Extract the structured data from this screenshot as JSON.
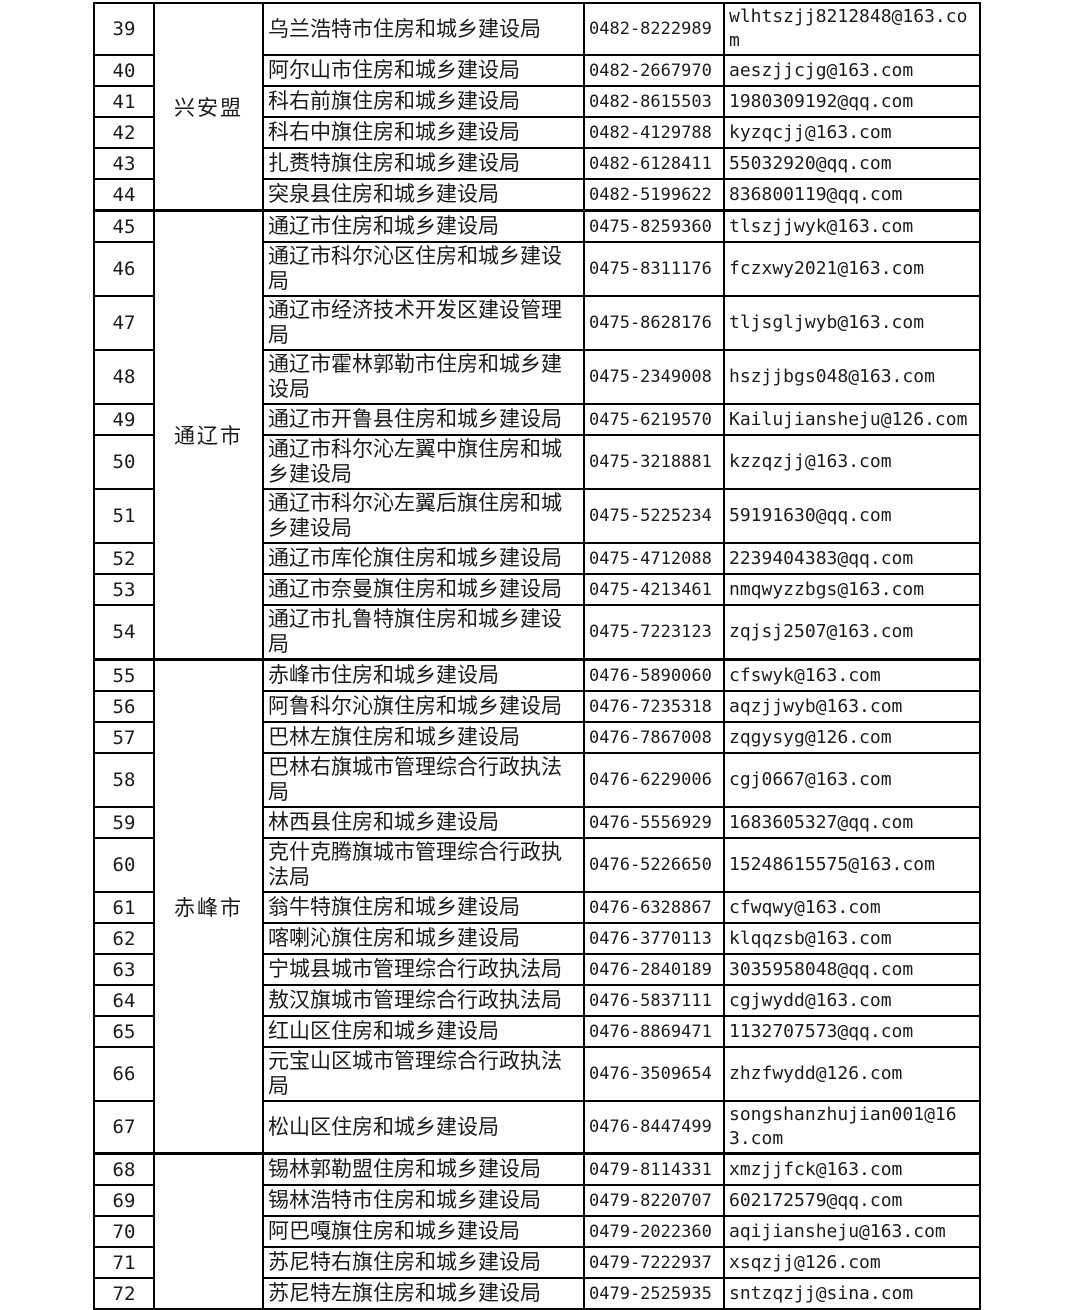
{
  "colors": {
    "background": "#ffffff",
    "border": "#000000",
    "text": "#1b1b1b"
  },
  "table": {
    "groups": [
      {
        "region": "兴安盟",
        "rows": [
          {
            "no": "39",
            "dept": "乌兰浩特市住房和城乡建设局",
            "phone": "0482-8222989",
            "email": "wlhtszjj8212848@163.com"
          },
          {
            "no": "40",
            "dept": "阿尔山市住房和城乡建设局",
            "phone": "0482-2667970",
            "email": "aeszjjcjg@163.com"
          },
          {
            "no": "41",
            "dept": "科右前旗住房和城乡建设局",
            "phone": "0482-8615503",
            "email": "1980309192@qq.com"
          },
          {
            "no": "42",
            "dept": "科右中旗住房和城乡建设局",
            "phone": "0482-4129788",
            "email": "kyzqcjj@163.com"
          },
          {
            "no": "43",
            "dept": "扎赉特旗住房和城乡建设局",
            "phone": "0482-6128411",
            "email": "55032920@qq.com"
          },
          {
            "no": "44",
            "dept": "突泉县住房和城乡建设局",
            "phone": "0482-5199622",
            "email": "836800119@qq.com"
          }
        ]
      },
      {
        "region": "通辽市",
        "rows": [
          {
            "no": "45",
            "dept": "通辽市住房和城乡建设局",
            "phone": "0475-8259360",
            "email": "tlszjjwyk@163.com"
          },
          {
            "no": "46",
            "dept": "通辽市科尔沁区住房和城乡建设局",
            "phone": "0475-8311176",
            "email": "fczxwy2021@163.com"
          },
          {
            "no": "47",
            "dept": "通辽市经济技术开发区建设管理局",
            "phone": "0475-8628176",
            "email": "tljsgljwyb@163.com"
          },
          {
            "no": "48",
            "dept": "通辽市霍林郭勒市住房和城乡建设局",
            "phone": "0475-2349008",
            "email": "hszjjbgs048@163.com"
          },
          {
            "no": "49",
            "dept": "通辽市开鲁县住房和城乡建设局",
            "phone": "0475-6219570",
            "email": "Kailujiansheju@126.com"
          },
          {
            "no": "50",
            "dept": "通辽市科尔沁左翼中旗住房和城乡建设局",
            "phone": "0475-3218881",
            "email": "kzzqzjj@163.com"
          },
          {
            "no": "51",
            "dept": "通辽市科尔沁左翼后旗住房和城乡建设局",
            "phone": "0475-5225234",
            "email": "59191630@qq.com"
          },
          {
            "no": "52",
            "dept": "通辽市库伦旗住房和城乡建设局",
            "phone": "0475-4712088",
            "email": "2239404383@qq.com"
          },
          {
            "no": "53",
            "dept": "通辽市奈曼旗住房和城乡建设局",
            "phone": "0475-4213461",
            "email": "nmqwyzzbgs@163.com"
          },
          {
            "no": "54",
            "dept": "通辽市扎鲁特旗住房和城乡建设局",
            "phone": "0475-7223123",
            "email": "zqjsj2507@163.com"
          }
        ]
      },
      {
        "region": "赤峰市",
        "rows": [
          {
            "no": "55",
            "dept": "赤峰市住房和城乡建设局",
            "phone": "0476-5890060",
            "email": "cfswyk@163.com"
          },
          {
            "no": "56",
            "dept": "阿鲁科尔沁旗住房和城乡建设局",
            "phone": "0476-7235318",
            "email": "aqzjjwyb@163.com"
          },
          {
            "no": "57",
            "dept": "巴林左旗住房和城乡建设局",
            "phone": "0476-7867008",
            "email": "zqgysyg@126.com"
          },
          {
            "no": "58",
            "dept": "巴林右旗城市管理综合行政执法局",
            "phone": "0476-6229006",
            "email": "cgj0667@163.com"
          },
          {
            "no": "59",
            "dept": "林西县住房和城乡建设局",
            "phone": "0476-5556929",
            "email": "1683605327@qq.com"
          },
          {
            "no": "60",
            "dept": "克什克腾旗城市管理综合行政执法局",
            "phone": "0476-5226650",
            "email": "15248615575@163.com"
          },
          {
            "no": "61",
            "dept": "翁牛特旗住房和城乡建设局",
            "phone": "0476-6328867",
            "email": "cfwqwy@163.com"
          },
          {
            "no": "62",
            "dept": "喀喇沁旗住房和城乡建设局",
            "phone": "0476-3770113",
            "email": "klqqzsb@163.com"
          },
          {
            "no": "63",
            "dept": "宁城县城市管理综合行政执法局",
            "phone": "0476-2840189",
            "email": "3035958048@qq.com"
          },
          {
            "no": "64",
            "dept": "敖汉旗城市管理综合行政执法局",
            "phone": "0476-5837111",
            "email": "cgjwydd@163.com"
          },
          {
            "no": "65",
            "dept": "红山区住房和城乡建设局",
            "phone": "0476-8869471",
            "email": "1132707573@qq.com"
          },
          {
            "no": "66",
            "dept": "元宝山区城市管理综合行政执法局",
            "phone": "0476-3509654",
            "email": "zhzfwydd@126.com"
          },
          {
            "no": "67",
            "dept": "松山区住房和城乡建设局",
            "phone": "0476-8447499",
            "email": "songshanzhujian001@163.com"
          }
        ]
      },
      {
        "region": "",
        "rows": [
          {
            "no": "68",
            "dept": "锡林郭勒盟住房和城乡建设局",
            "phone": "0479-8114331",
            "email": "xmzjjfck@163.com"
          },
          {
            "no": "69",
            "dept": "锡林浩特市住房和城乡建设局",
            "phone": "0479-8220707",
            "email": "602172579@qq.com"
          },
          {
            "no": "70",
            "dept": "阿巴嘎旗住房和城乡建设局",
            "phone": "0479-2022360",
            "email": "aqijiansheju@163.com"
          },
          {
            "no": "71",
            "dept": "苏尼特右旗住房和城乡建设局",
            "phone": "0479-7222937",
            "email": "xsqzjj@126.com"
          },
          {
            "no": "72",
            "dept": "苏尼特左旗住房和城乡建设局",
            "phone": "0479-2525935",
            "email": "sntzqzjj@sina.com"
          }
        ]
      }
    ]
  }
}
